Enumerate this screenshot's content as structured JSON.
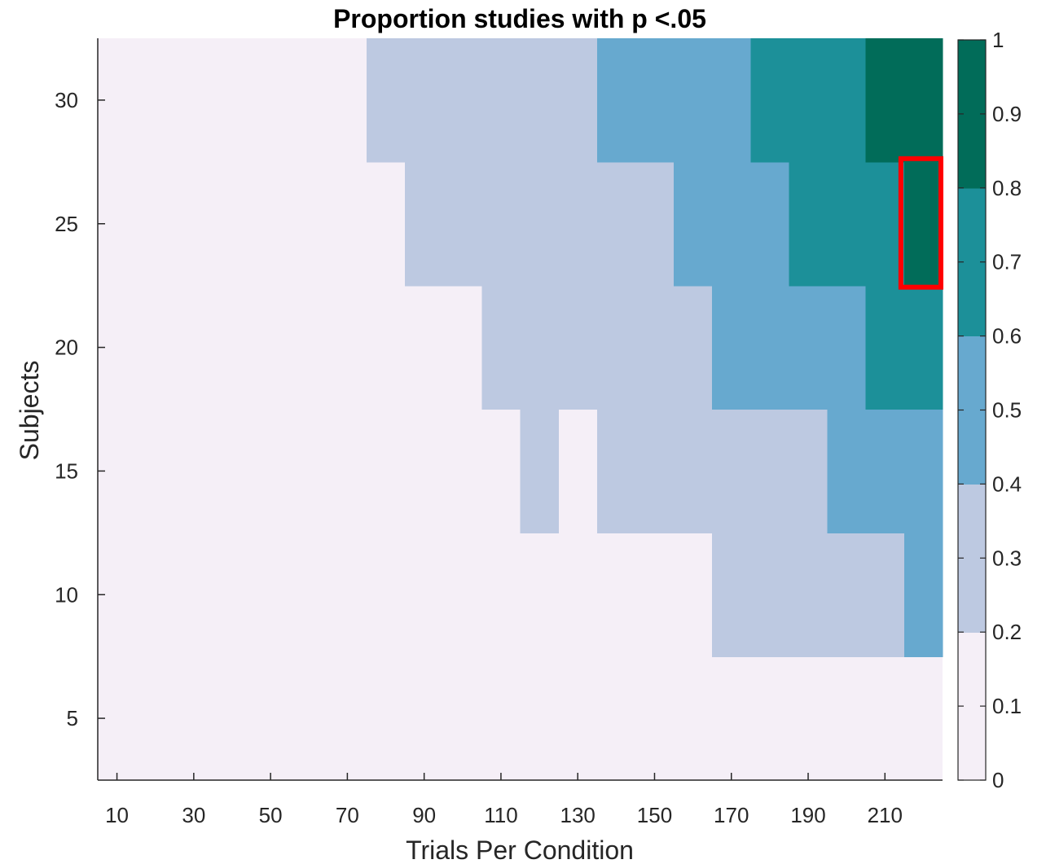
{
  "chart_data": {
    "type": "heatmap",
    "title": "Proportion studies with p <.05",
    "xlabel": "Trials Per Condition",
    "ylabel": "Subjects",
    "x_ticks": [
      10,
      30,
      50,
      70,
      90,
      110,
      130,
      150,
      170,
      190,
      210
    ],
    "y_ticks": [
      5,
      10,
      15,
      20,
      25,
      30
    ],
    "xlim": [
      5,
      225
    ],
    "ylim": [
      2.5,
      32.5
    ],
    "cell_width": 10,
    "cell_height": 5,
    "colorbar": {
      "ticks": [
        0,
        0.1,
        0.2,
        0.3,
        0.4,
        0.5,
        0.6,
        0.7,
        0.8,
        0.9,
        1
      ],
      "tick_labels": [
        "0",
        "0.1",
        "0.2",
        "0.3",
        "0.4",
        "0.5",
        "0.6",
        "0.7",
        "0.8",
        "0.9",
        "1"
      ],
      "levels": [
        {
          "min": 0.0,
          "max": 0.2,
          "color": "#f5eff7"
        },
        {
          "min": 0.2,
          "max": 0.4,
          "color": "#bdc9e1"
        },
        {
          "min": 0.4,
          "max": 0.6,
          "color": "#67a9cf"
        },
        {
          "min": 0.6,
          "max": 0.8,
          "color": "#1c9099"
        },
        {
          "min": 0.8,
          "max": 1.0,
          "color": "#016c59"
        }
      ]
    },
    "regions": [
      {
        "level": 1,
        "x": [
          75,
          225
        ],
        "y": [
          27.5,
          32.5
        ]
      },
      {
        "level": 1,
        "x": [
          85,
          225
        ],
        "y": [
          22.5,
          27.5
        ]
      },
      {
        "level": 1,
        "x": [
          105,
          225
        ],
        "y": [
          17.5,
          22.5
        ]
      },
      {
        "level": 1,
        "x": [
          115,
          125
        ],
        "y": [
          12.5,
          17.5
        ]
      },
      {
        "level": 1,
        "x": [
          135,
          225
        ],
        "y": [
          12.5,
          17.5
        ]
      },
      {
        "level": 1,
        "x": [
          165,
          225
        ],
        "y": [
          7.5,
          12.5
        ]
      },
      {
        "level": 2,
        "x": [
          135,
          225
        ],
        "y": [
          27.5,
          32.5
        ]
      },
      {
        "level": 2,
        "x": [
          155,
          225
        ],
        "y": [
          22.5,
          27.5
        ]
      },
      {
        "level": 2,
        "x": [
          165,
          225
        ],
        "y": [
          17.5,
          22.5
        ]
      },
      {
        "level": 2,
        "x": [
          195,
          225
        ],
        "y": [
          12.5,
          17.5
        ]
      },
      {
        "level": 2,
        "x": [
          215,
          225
        ],
        "y": [
          7.5,
          12.5
        ]
      },
      {
        "level": 3,
        "x": [
          175,
          225
        ],
        "y": [
          27.5,
          32.5
        ]
      },
      {
        "level": 3,
        "x": [
          185,
          225
        ],
        "y": [
          22.5,
          27.5
        ]
      },
      {
        "level": 3,
        "x": [
          205,
          225
        ],
        "y": [
          17.5,
          22.5
        ]
      },
      {
        "level": 4,
        "x": [
          205,
          225
        ],
        "y": [
          27.5,
          32.5
        ]
      },
      {
        "level": 4,
        "x": [
          215,
          225
        ],
        "y": [
          22.5,
          27.5
        ]
      }
    ],
    "highlight": {
      "x": [
        215,
        225
      ],
      "y": [
        22.5,
        27.5
      ],
      "color": "#ff0000"
    },
    "grid": false,
    "legend": "colorbar-right"
  }
}
